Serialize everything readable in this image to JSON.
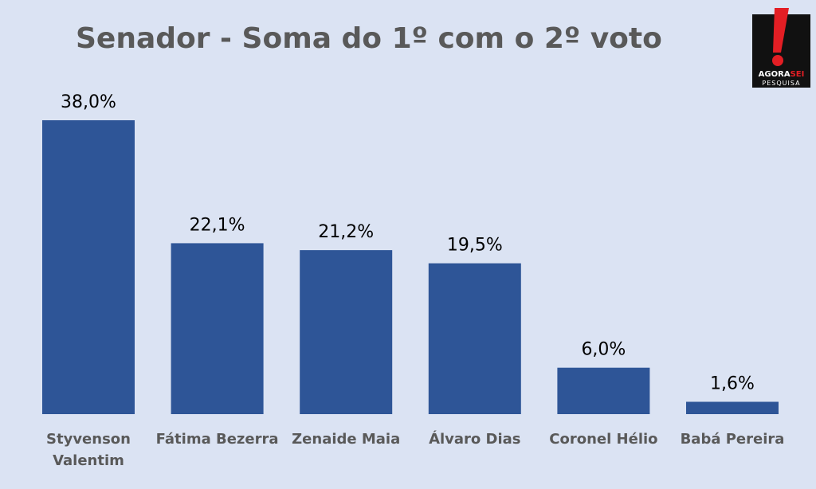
{
  "chart_data": {
    "type": "bar",
    "title": "Senador - Soma do 1º com o 2º voto",
    "categories": [
      "Styvenson Valentim",
      "Fátima Bezerra",
      "Zenaide Maia",
      "Álvaro Dias",
      "Coronel Hélio",
      "Babá Pereira"
    ],
    "category_lines": [
      [
        "Styvenson",
        "Valentim"
      ],
      [
        "Fátima Bezerra"
      ],
      [
        "Zenaide Maia"
      ],
      [
        "Álvaro Dias"
      ],
      [
        "Coronel Hélio"
      ],
      [
        "Babá Pereira"
      ]
    ],
    "values": [
      38.0,
      22.1,
      21.2,
      19.5,
      6.0,
      1.6
    ],
    "value_labels": [
      "38,0%",
      "22,1%",
      "21,2%",
      "19,5%",
      "6,0%",
      "1,6%"
    ],
    "ylim": [
      0,
      38.0
    ],
    "xlabel": "",
    "ylabel": "",
    "grid": false,
    "legend": "none",
    "bar_color": "#2e5597",
    "background_color": "#dbe3f3"
  },
  "logo": {
    "line1_a": "AGORA",
    "line1_b": "SEI",
    "line2": "PESQUISA",
    "accent_color": "#e31e24"
  }
}
